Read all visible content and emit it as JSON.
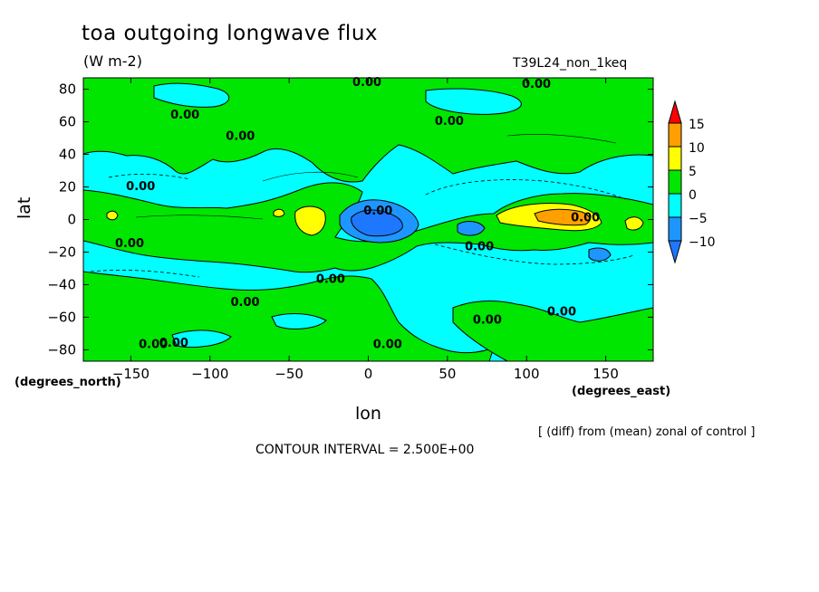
{
  "chart_data": {
    "type": "contour",
    "title": "toa outgoing longwave flux",
    "units": "(W m-2)",
    "run_label": "T39L24_non_1keq",
    "xlabel": "lon",
    "ylabel": "lat",
    "x_units": "(degrees_east)",
    "y_units": "(degrees_north)",
    "xlim": [
      -180,
      180
    ],
    "ylim": [
      -87,
      87
    ],
    "x_ticks": [
      -150,
      -100,
      -50,
      0,
      50,
      100,
      150
    ],
    "y_ticks": [
      -80,
      -60,
      -40,
      -20,
      0,
      20,
      40,
      60,
      80
    ],
    "note": "[ (diff) from (mean) zonal of control ]",
    "contour_interval_text": "CONTOUR INTERVAL = 2.500E+00",
    "contour_labels": [
      "0.00",
      "0.00",
      "0.00",
      "0.00",
      "0.00",
      "0.00",
      "0.00",
      "0.00",
      "0.00",
      "0.00",
      "0.00",
      "0.00",
      "0.00",
      "0.00",
      "0.00",
      "0.00",
      "0.00"
    ],
    "colorbar": {
      "levels": [
        -10,
        -5,
        0,
        5,
        10,
        15
      ],
      "tick_labels": [
        "15",
        "10",
        "5",
        "0",
        "-5",
        "-10"
      ],
      "colors": {
        "below_-10": "#1e78ff",
        "-10_to_-5": "#1e96ff",
        "-5_to_0": "#00ffff",
        "0_to_5": "#00e600",
        "5_to_10": "#ffff00",
        "10_to_15": "#ffa000",
        "above_15": "#ff0000"
      }
    },
    "features": [
      {
        "name": "negative anomaly core",
        "lon": 0,
        "lat": -2,
        "min": -10
      },
      {
        "name": "positive anomaly maximum",
        "lon": 120,
        "lat": 2,
        "max": 10
      },
      {
        "name": "positive anomaly",
        "lon": -38,
        "lat": 0,
        "max": 7.5
      },
      {
        "name": "negative anomaly",
        "lon": 75,
        "lat": -5,
        "min": -7.5
      }
    ]
  }
}
